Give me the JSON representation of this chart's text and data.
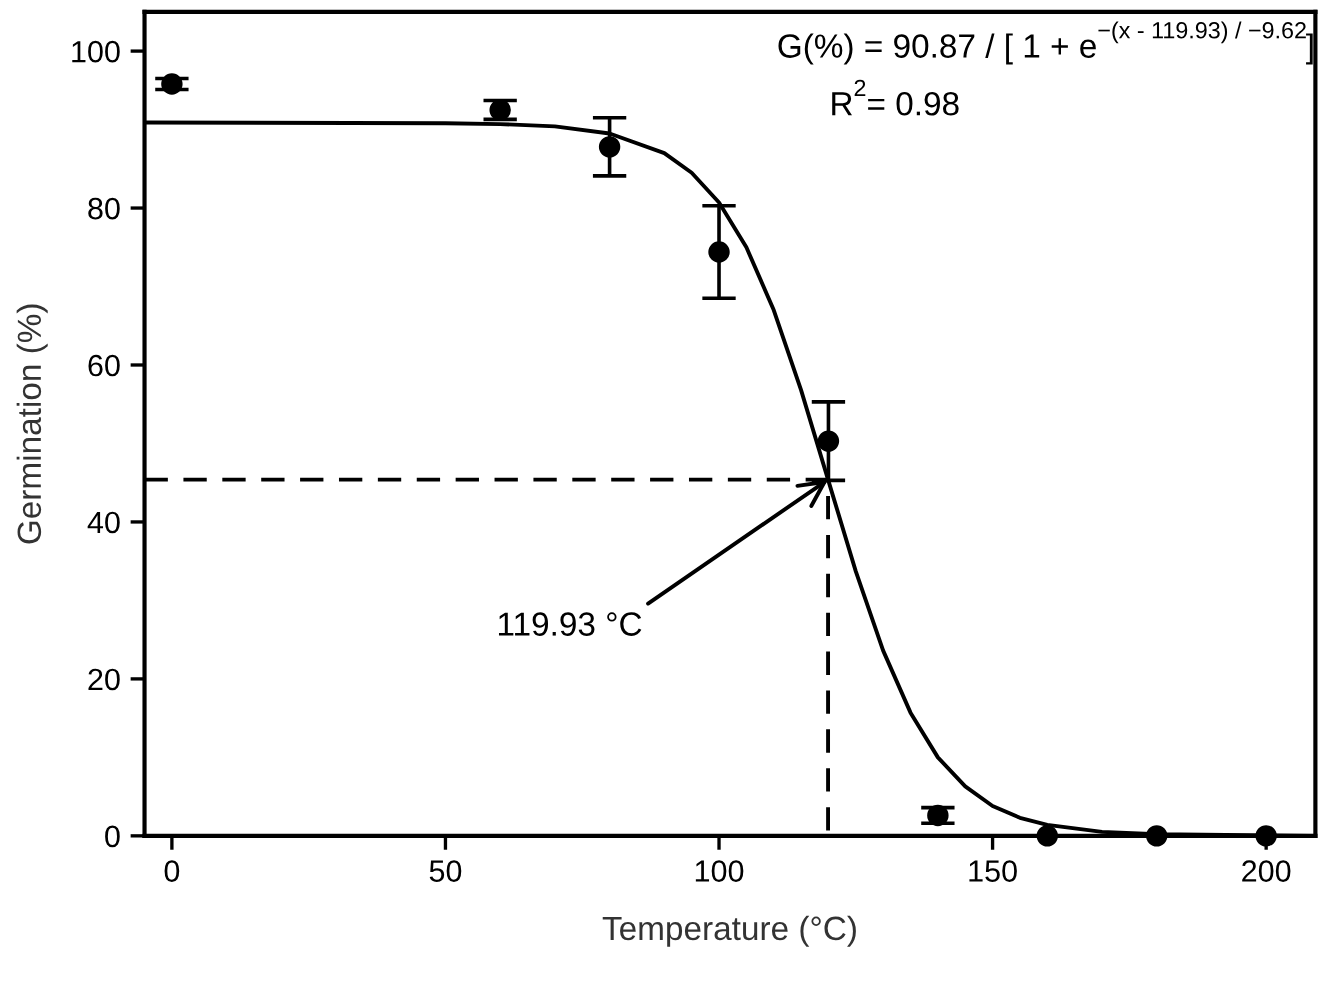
{
  "chart_data": {
    "type": "scatter",
    "xlabel": "Temperature (°C)",
    "ylabel": "Germination (%)",
    "xlim": [
      -5,
      209
    ],
    "ylim": [
      0,
      105
    ],
    "xticks": [
      0,
      50,
      100,
      150,
      200
    ],
    "yticks": [
      0,
      20,
      40,
      60,
      80,
      100
    ],
    "grid": false,
    "legend": false,
    "marker": "circle",
    "series": [
      {
        "color": "#000000",
        "x": [
          0,
          60,
          80,
          100,
          120,
          140,
          160,
          180,
          200
        ],
        "values": [
          95.8,
          92.5,
          87.8,
          74.4,
          50.3,
          2.6,
          0,
          0,
          0
        ],
        "errors": [
          0.7,
          1.2,
          3.7,
          5.9,
          5,
          1,
          null,
          null,
          null
        ]
      },
      {
        "type": "line",
        "color": "#000000",
        "line_style": "solid",
        "marker": "none",
        "x": [
          -5,
          50,
          60,
          70,
          80,
          90,
          95,
          100,
          105,
          110,
          115,
          119.93,
          125,
          130,
          135,
          140,
          145,
          150,
          155,
          160,
          170,
          180,
          209
        ],
        "values": [
          90.9,
          90.8,
          90.7,
          90.4,
          89.5,
          87.0,
          84.5,
          80.7,
          75.0,
          67.0,
          56.8,
          45.4,
          33.7,
          23.6,
          15.7,
          10.0,
          6.3,
          3.8,
          2.3,
          1.4,
          0.5,
          0.2,
          0
        ]
      },
      {
        "type": "line",
        "color": "#000000",
        "line_style": "dashed",
        "marker": "none",
        "x": [
          -5,
          119.93,
          119.93
        ],
        "values": [
          45.4,
          45.4,
          0
        ]
      }
    ],
    "annotations": [
      "G(%) = 90.87 / [ 1 + e$^{−(x - 119.93) / −9.62}$]",
      "R$^{2}$= 0.98",
      {
        "text": "119.93 °C",
        "x": 119.93,
        "y": 45.4
      }
    ]
  }
}
